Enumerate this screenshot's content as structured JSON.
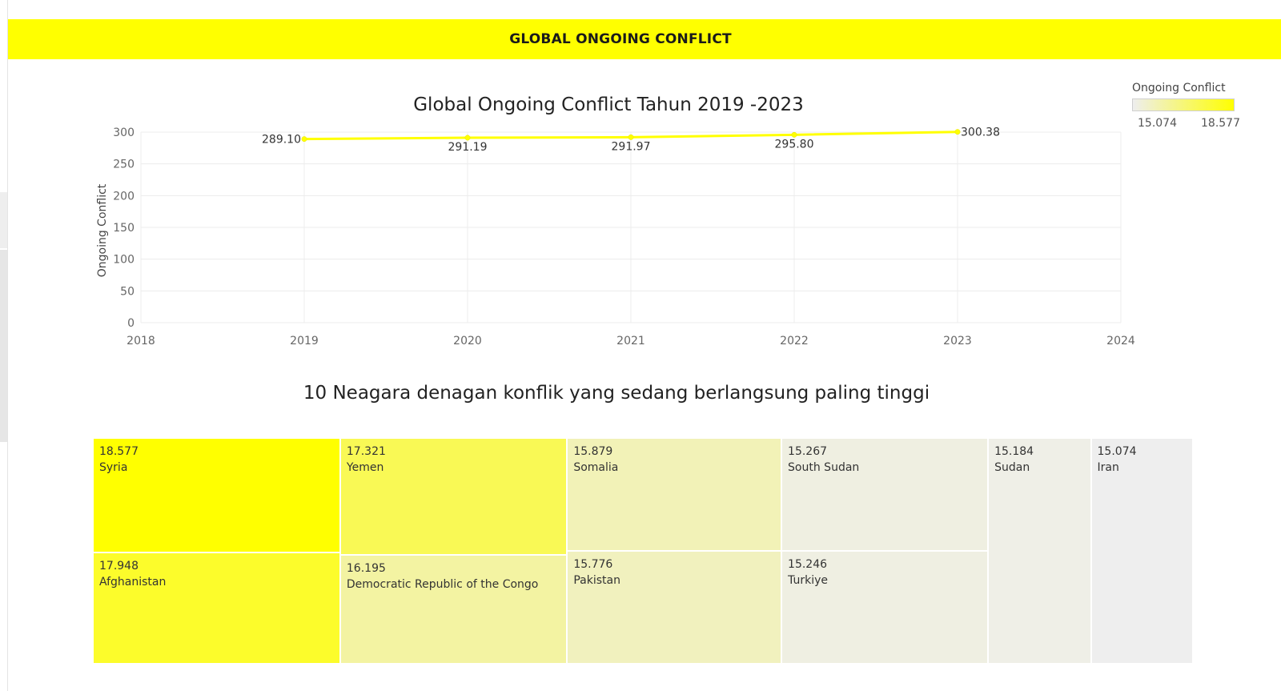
{
  "header": {
    "title": "GLOBAL ONGOING CONFLICT",
    "background": "#ffff00"
  },
  "legend": {
    "title": "Ongoing Conflict",
    "min_label": "15.074",
    "max_label": "18.577",
    "color_low": "#eeeeee",
    "color_high": "#ffff00"
  },
  "chart_data": [
    {
      "type": "line",
      "title": "Global Ongoing Conflict Tahun 2019 -2023",
      "xlabel": "",
      "ylabel": "Ongoing Conflict",
      "x": [
        2019,
        2020,
        2021,
        2022,
        2023
      ],
      "values": [
        289.1,
        291.19,
        291.97,
        295.8,
        300.38
      ],
      "data_labels": [
        "289.10",
        "291.19",
        "291.97",
        "295.80",
        "300.38"
      ],
      "xlim": [
        2018,
        2024
      ],
      "ylim": [
        0,
        300
      ],
      "x_ticks": [
        "2018",
        "2019",
        "2020",
        "2021",
        "2022",
        "2023",
        "2024"
      ],
      "y_ticks": [
        "0",
        "50",
        "100",
        "150",
        "200",
        "250",
        "300"
      ],
      "grid": true,
      "line_color": "#ffff00"
    },
    {
      "type": "treemap",
      "title": "10 Neagara denagan konflik yang sedang berlangsung paling tinggi",
      "items": [
        {
          "country": "Syria",
          "value": 18.577,
          "label": "18.577"
        },
        {
          "country": "Afghanistan",
          "value": 17.948,
          "label": "17.948"
        },
        {
          "country": "Yemen",
          "value": 17.321,
          "label": "17.321"
        },
        {
          "country": "Democratic Republic of the Congo",
          "value": 16.195,
          "label": "16.195"
        },
        {
          "country": "Somalia",
          "value": 15.879,
          "label": "15.879"
        },
        {
          "country": "Pakistan",
          "value": 15.776,
          "label": "15.776"
        },
        {
          "country": "South Sudan",
          "value": 15.267,
          "label": "15.267"
        },
        {
          "country": "Turkiye",
          "value": 15.246,
          "label": "15.246"
        },
        {
          "country": "Sudan",
          "value": 15.184,
          "label": "15.184"
        },
        {
          "country": "Iran",
          "value": 15.074,
          "label": "15.074"
        }
      ]
    }
  ]
}
